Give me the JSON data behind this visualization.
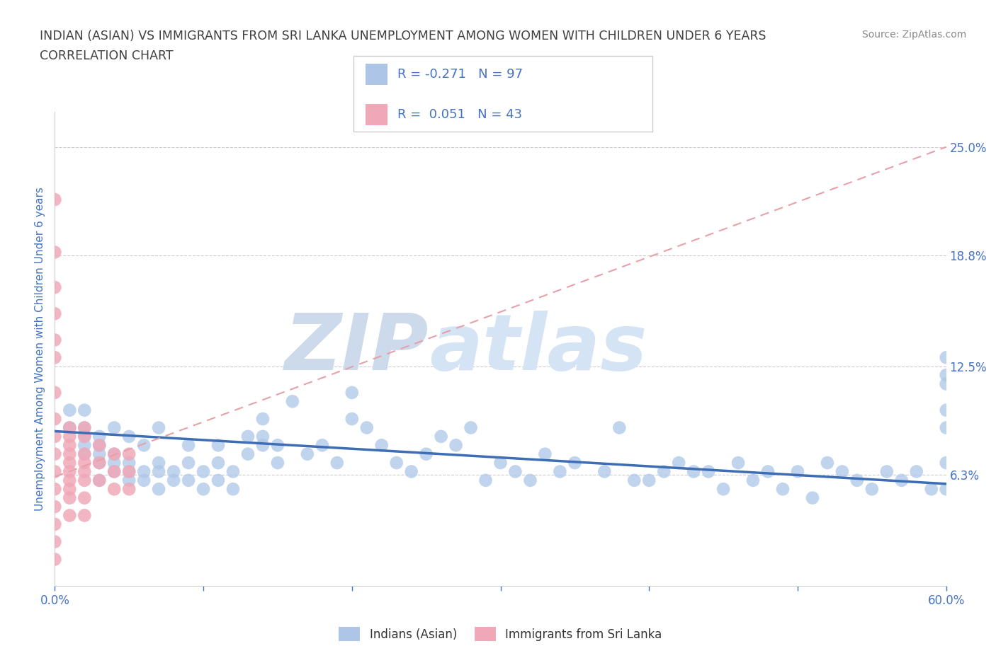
{
  "title_line1": "INDIAN (ASIAN) VS IMMIGRANTS FROM SRI LANKA UNEMPLOYMENT AMONG WOMEN WITH CHILDREN UNDER 6 YEARS",
  "title_line2": "CORRELATION CHART",
  "source_text": "Source: ZipAtlas.com",
  "ylabel": "Unemployment Among Women with Children Under 6 years",
  "xlim": [
    0.0,
    0.6
  ],
  "ylim": [
    0.0,
    0.27
  ],
  "yticks_right": [
    0.063,
    0.125,
    0.188,
    0.25
  ],
  "ytick_labels_right": [
    "6.3%",
    "12.5%",
    "18.8%",
    "25.0%"
  ],
  "xtick_left_label": "0.0%",
  "xtick_right_label": "60.0%",
  "legend_entry1": "R = -0.271   N = 97",
  "legend_entry2": "R =  0.051   N = 43",
  "color_indian": "#adc6e8",
  "color_srilanka": "#f0a8b8",
  "color_trend_indian": "#3d6db5",
  "color_trend_srilanka": "#e8a0a8",
  "watermark_zip": "ZIP",
  "watermark_atlas": "atlas",
  "watermark_color": "#ccdaec",
  "background_color": "#ffffff",
  "title_color": "#404040",
  "tick_color": "#4472c4",
  "source_color": "#888888",
  "indian_x": [
    0.01,
    0.01,
    0.02,
    0.02,
    0.02,
    0.02,
    0.02,
    0.03,
    0.03,
    0.03,
    0.03,
    0.03,
    0.04,
    0.04,
    0.04,
    0.04,
    0.05,
    0.05,
    0.05,
    0.05,
    0.06,
    0.06,
    0.06,
    0.07,
    0.07,
    0.07,
    0.07,
    0.08,
    0.08,
    0.09,
    0.09,
    0.09,
    0.1,
    0.1,
    0.11,
    0.11,
    0.11,
    0.12,
    0.12,
    0.13,
    0.13,
    0.14,
    0.14,
    0.14,
    0.15,
    0.15,
    0.16,
    0.17,
    0.18,
    0.19,
    0.2,
    0.2,
    0.21,
    0.22,
    0.23,
    0.24,
    0.25,
    0.26,
    0.27,
    0.28,
    0.29,
    0.3,
    0.31,
    0.32,
    0.33,
    0.34,
    0.35,
    0.37,
    0.38,
    0.39,
    0.4,
    0.41,
    0.42,
    0.43,
    0.44,
    0.45,
    0.46,
    0.47,
    0.48,
    0.49,
    0.5,
    0.51,
    0.52,
    0.53,
    0.54,
    0.55,
    0.56,
    0.57,
    0.58,
    0.59,
    0.6,
    0.6,
    0.6,
    0.6,
    0.6,
    0.6,
    0.6
  ],
  "indian_y": [
    0.09,
    0.1,
    0.075,
    0.08,
    0.085,
    0.09,
    0.1,
    0.06,
    0.07,
    0.075,
    0.08,
    0.085,
    0.065,
    0.07,
    0.075,
    0.09,
    0.06,
    0.065,
    0.07,
    0.085,
    0.06,
    0.065,
    0.08,
    0.055,
    0.065,
    0.07,
    0.09,
    0.06,
    0.065,
    0.06,
    0.07,
    0.08,
    0.055,
    0.065,
    0.06,
    0.07,
    0.08,
    0.055,
    0.065,
    0.075,
    0.085,
    0.08,
    0.085,
    0.095,
    0.07,
    0.08,
    0.105,
    0.075,
    0.08,
    0.07,
    0.095,
    0.11,
    0.09,
    0.08,
    0.07,
    0.065,
    0.075,
    0.085,
    0.08,
    0.09,
    0.06,
    0.07,
    0.065,
    0.06,
    0.075,
    0.065,
    0.07,
    0.065,
    0.09,
    0.06,
    0.06,
    0.065,
    0.07,
    0.065,
    0.065,
    0.055,
    0.07,
    0.06,
    0.065,
    0.055,
    0.065,
    0.05,
    0.07,
    0.065,
    0.06,
    0.055,
    0.065,
    0.06,
    0.065,
    0.055,
    0.13,
    0.12,
    0.115,
    0.1,
    0.09,
    0.07,
    0.055
  ],
  "srilanka_x": [
    0.0,
    0.0,
    0.0,
    0.0,
    0.0,
    0.0,
    0.0,
    0.0,
    0.0,
    0.0,
    0.0,
    0.0,
    0.0,
    0.0,
    0.0,
    0.0,
    0.01,
    0.01,
    0.01,
    0.01,
    0.01,
    0.01,
    0.01,
    0.01,
    0.01,
    0.01,
    0.02,
    0.02,
    0.02,
    0.02,
    0.02,
    0.02,
    0.02,
    0.02,
    0.03,
    0.03,
    0.03,
    0.04,
    0.04,
    0.04,
    0.05,
    0.05,
    0.05
  ],
  "srilanka_y": [
    0.22,
    0.19,
    0.17,
    0.155,
    0.14,
    0.13,
    0.11,
    0.095,
    0.085,
    0.075,
    0.065,
    0.055,
    0.045,
    0.035,
    0.025,
    0.015,
    0.09,
    0.085,
    0.08,
    0.075,
    0.07,
    0.065,
    0.06,
    0.055,
    0.05,
    0.04,
    0.09,
    0.085,
    0.075,
    0.07,
    0.065,
    0.06,
    0.05,
    0.04,
    0.08,
    0.07,
    0.06,
    0.075,
    0.065,
    0.055,
    0.075,
    0.065,
    0.055
  ],
  "trend_indian_x0": 0.0,
  "trend_indian_x1": 0.6,
  "trend_indian_y0": 0.088,
  "trend_indian_y1": 0.058,
  "trend_srilanka_x0": 0.0,
  "trend_srilanka_x1": 0.6,
  "trend_srilanka_y0": 0.062,
  "trend_srilanka_y1": 0.25
}
